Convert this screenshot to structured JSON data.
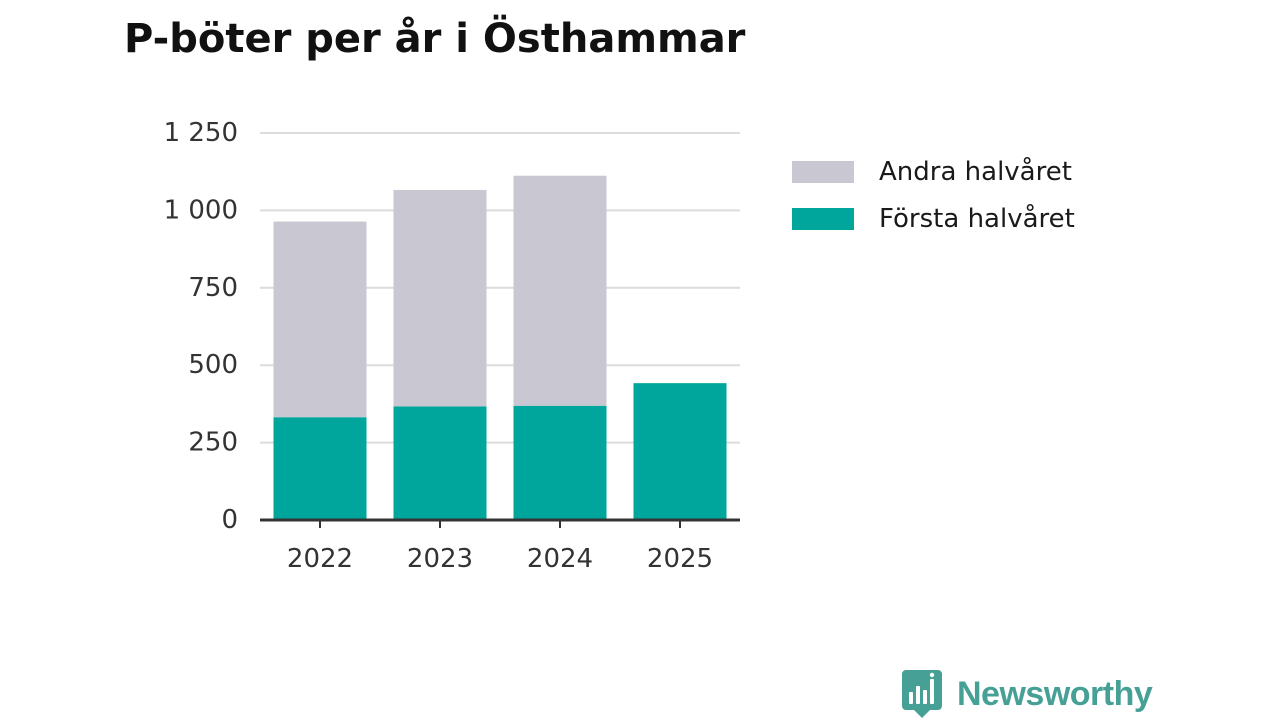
{
  "chart_data": {
    "type": "bar",
    "stacked": true,
    "title": "P-böter per år i Östhammar",
    "xlabel": "",
    "ylabel": "",
    "categories": [
      "2022",
      "2023",
      "2024",
      "2025"
    ],
    "series": [
      {
        "name": "Första halvåret",
        "color": "#00a59b",
        "values": [
          332,
          367,
          369,
          442
        ]
      },
      {
        "name": "Andra halvåret",
        "color": "#c8c7d2",
        "values": [
          632,
          699,
          743,
          0
        ]
      }
    ],
    "ylim": [
      0,
      1250
    ],
    "yticks": [
      0,
      250,
      500,
      750,
      1000,
      1250
    ],
    "ytick_labels": [
      "0",
      "250",
      "500",
      "750",
      "1 000",
      "1 250"
    ],
    "grid": true,
    "legend": {
      "position": "right",
      "order": [
        "Andra halvåret",
        "Första halvåret"
      ]
    }
  },
  "branding": {
    "name": "Newsworthy",
    "color": "#46a096",
    "icon": "bar-chart-speech-bubble-icon"
  }
}
